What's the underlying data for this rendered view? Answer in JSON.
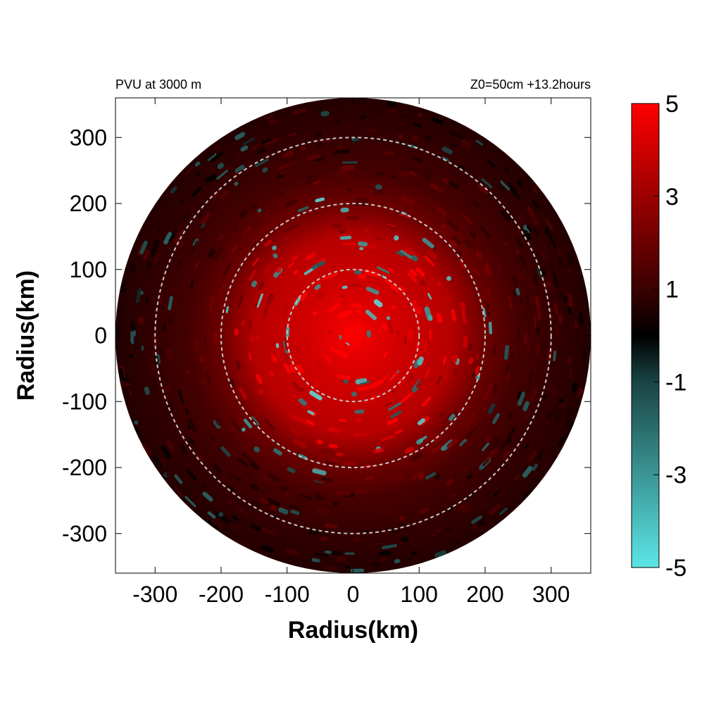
{
  "chart_data": {
    "type": "heatmap",
    "subtype": "polar-field",
    "title_left": "PVU at  3000 m",
    "title_right": "Z0=50cm  +13.2hours",
    "xlabel": "Radius(km)",
    "ylabel": "Radius(km)",
    "xlim": [
      -360,
      360
    ],
    "ylim": [
      -360,
      360
    ],
    "x_ticks": [
      -300,
      -200,
      -100,
      0,
      100,
      200,
      300
    ],
    "y_ticks": [
      300,
      200,
      100,
      0,
      -100,
      -200,
      -300
    ],
    "domain_radius_km": 360,
    "reference_circles_km": [
      100,
      200,
      300
    ],
    "colorbar": {
      "range": [
        -5,
        5
      ],
      "tick_labels": [
        "5",
        "3",
        "1",
        "-1",
        "-3",
        "-5"
      ],
      "tick_values": [
        5,
        3,
        1,
        -1,
        -3,
        -5
      ],
      "stops": [
        {
          "value": -5,
          "color": "#5ce6e6"
        },
        {
          "value": -1,
          "color": "#1a4444"
        },
        {
          "value": 0,
          "color": "#000000"
        },
        {
          "value": 1,
          "color": "#3a0000"
        },
        {
          "value": 5,
          "color": "#ff0000"
        }
      ]
    },
    "radial_profile_pvu": [
      {
        "r_km": 0,
        "pvu": 5.0
      },
      {
        "r_km": 30,
        "pvu": 4.5
      },
      {
        "r_km": 80,
        "pvu": 4.0
      },
      {
        "r_km": 150,
        "pvu": 3.5
      },
      {
        "r_km": 200,
        "pvu": 2.0
      },
      {
        "r_km": 250,
        "pvu": 1.2
      },
      {
        "r_km": 320,
        "pvu": 0.8
      },
      {
        "r_km": 360,
        "pvu": 0.6
      }
    ],
    "grid": false
  }
}
